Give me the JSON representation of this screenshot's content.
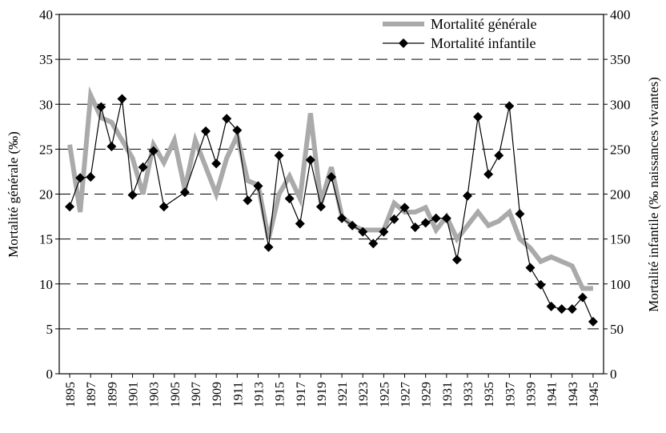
{
  "chart_data": {
    "type": "line",
    "ylabel": "Mortalité générale (‰)",
    "y2label": "Mortalité infantile (‰ naissances vivantes)",
    "xlim": [
      1894,
      1946
    ],
    "xticks": [
      1895,
      1897,
      1899,
      1901,
      1903,
      1905,
      1907,
      1909,
      1911,
      1913,
      1915,
      1917,
      1919,
      1921,
      1923,
      1925,
      1927,
      1929,
      1931,
      1933,
      1935,
      1937,
      1939,
      1941,
      1943,
      1945
    ],
    "ylim": [
      0,
      40
    ],
    "yticks": [
      0,
      5,
      10,
      15,
      20,
      25,
      30,
      35,
      40
    ],
    "y2lim": [
      0,
      400
    ],
    "y2ticks": [
      0,
      50,
      100,
      150,
      200,
      250,
      300,
      350,
      400
    ],
    "grid": true,
    "legend": "top-right",
    "series": [
      {
        "name": "Mortalité générale",
        "color": "#aaaaaa",
        "x": [
          1895,
          1896,
          1897,
          1898,
          1899,
          1900,
          1901,
          1902,
          1903,
          1904,
          1905,
          1906,
          1907,
          1908,
          1909,
          1910,
          1911,
          1912,
          1913,
          1914,
          1915,
          1916,
          1917,
          1918,
          1919,
          1920,
          1921,
          1922,
          1923,
          1924,
          1925,
          1926,
          1927,
          1928,
          1929,
          1930,
          1931,
          1932,
          1933,
          1934,
          1935,
          1936,
          1937,
          1938,
          1939,
          1940,
          1941,
          1942,
          1943,
          1944,
          1945
        ],
        "values": [
          25.5,
          18,
          31,
          28.5,
          28,
          26,
          24,
          20,
          25.5,
          23.5,
          26,
          20.5,
          26,
          23,
          20,
          24,
          26.5,
          21.5,
          21,
          15,
          20,
          22,
          19.5,
          29,
          19,
          23,
          17.5,
          16.5,
          16,
          16,
          16,
          19,
          18,
          18,
          18.5,
          16,
          17.5,
          15,
          16.5,
          18,
          16.5,
          17,
          18,
          15,
          14,
          12.5,
          13,
          12.5,
          12,
          9.5,
          9.5
        ]
      },
      {
        "name": "Mortalité infantile",
        "color": "#000000",
        "axis": "y2",
        "x": [
          1895,
          1896,
          1897,
          1898,
          1899,
          1900,
          1901,
          1902,
          1903,
          1904,
          1906,
          1908,
          1909,
          1910,
          1911,
          1912,
          1913,
          1914,
          1915,
          1916,
          1917,
          1918,
          1919,
          1920,
          1921,
          1922,
          1923,
          1924,
          1925,
          1926,
          1927,
          1928,
          1929,
          1930,
          1931,
          1932,
          1933,
          1934,
          1935,
          1936,
          1937,
          1938,
          1939,
          1940,
          1941,
          1942,
          1943,
          1944,
          1945
        ],
        "values": [
          186,
          218,
          219,
          297,
          253,
          306,
          199,
          230,
          248,
          186,
          202,
          270,
          234,
          284,
          271,
          193,
          209,
          141,
          243,
          195,
          167,
          238,
          186,
          219,
          173,
          165,
          158,
          145,
          158,
          172,
          185,
          163,
          168,
          173,
          173,
          127,
          198,
          286,
          222,
          243,
          298,
          178,
          118,
          99,
          75,
          72,
          72,
          85,
          58
        ]
      }
    ]
  }
}
